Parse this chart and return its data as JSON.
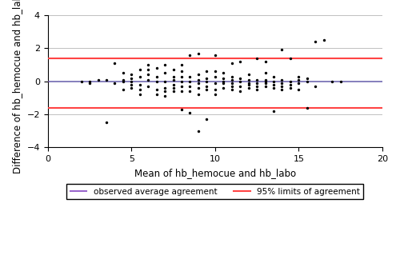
{
  "xlim": [
    0,
    20
  ],
  "ylim": [
    -4,
    4
  ],
  "xticks": [
    0,
    5,
    10,
    15,
    20
  ],
  "yticks": [
    -4,
    -2,
    0,
    2,
    4
  ],
  "xlabel": "Mean of hb_hemocue and hb_labo",
  "ylabel": "Difference of hb_hemocue and hb_labo",
  "mean_line_y": 0.0,
  "upper_loa": 1.4,
  "lower_loa": -1.6,
  "mean_line_color": "#9966CC",
  "loa_color": "#FF4444",
  "background_color": "#ffffff",
  "grid_color": "#c0c0c0",
  "scatter_color": "#000000",
  "scatter_size": 6,
  "legend_mean_label": "observed average agreement",
  "legend_loa_label": "95% limits of agreement",
  "scatter_x": [
    2.0,
    2.5,
    2.5,
    3.0,
    3.5,
    3.5,
    4.0,
    4.0,
    4.5,
    4.5,
    4.5,
    4.5,
    5.0,
    5.0,
    5.0,
    5.0,
    5.0,
    5.5,
    5.5,
    5.5,
    5.5,
    5.5,
    6.0,
    6.0,
    6.0,
    6.0,
    6.0,
    6.5,
    6.5,
    6.5,
    6.5,
    6.5,
    7.0,
    7.0,
    7.0,
    7.0,
    7.0,
    7.0,
    7.5,
    7.5,
    7.5,
    7.5,
    7.5,
    7.5,
    8.0,
    8.0,
    8.0,
    8.0,
    8.0,
    8.0,
    8.0,
    8.5,
    8.5,
    8.5,
    8.5,
    8.5,
    8.5,
    9.0,
    9.0,
    9.0,
    9.0,
    9.0,
    9.0,
    9.0,
    9.5,
    9.5,
    9.5,
    9.5,
    9.5,
    9.5,
    10.0,
    10.0,
    10.0,
    10.0,
    10.0,
    10.0,
    10.5,
    10.5,
    10.5,
    10.5,
    10.5,
    11.0,
    11.0,
    11.0,
    11.0,
    11.0,
    11.0,
    11.5,
    11.5,
    11.5,
    11.5,
    11.5,
    12.0,
    12.0,
    12.0,
    12.0,
    12.0,
    12.5,
    12.5,
    12.5,
    12.5,
    12.5,
    13.0,
    13.0,
    13.0,
    13.0,
    13.0,
    13.0,
    13.5,
    13.5,
    13.5,
    13.5,
    13.5,
    14.0,
    14.0,
    14.0,
    14.0,
    14.0,
    14.5,
    14.5,
    14.5,
    14.5,
    15.0,
    15.0,
    15.0,
    15.0,
    15.5,
    15.5,
    15.5,
    16.0,
    16.0,
    16.5,
    17.0,
    17.5
  ],
  "scatter_y": [
    0.0,
    -0.1,
    0.0,
    0.1,
    -2.5,
    0.1,
    -0.1,
    1.1,
    -0.5,
    0.0,
    0.1,
    0.5,
    -0.4,
    -0.2,
    0.0,
    0.2,
    0.4,
    -0.8,
    -0.5,
    -0.2,
    0.3,
    0.7,
    -0.3,
    0.1,
    0.4,
    0.7,
    1.0,
    -0.8,
    -0.5,
    0.0,
    0.3,
    0.8,
    -0.9,
    -0.6,
    -0.4,
    0.0,
    0.5,
    1.0,
    -0.6,
    -0.4,
    -0.2,
    0.1,
    0.3,
    0.7,
    -1.7,
    -0.6,
    -0.3,
    0.0,
    0.3,
    0.6,
    1.0,
    -1.9,
    -0.6,
    -0.3,
    0.0,
    0.3,
    1.6,
    -3.0,
    -0.8,
    -0.4,
    -0.1,
    0.1,
    0.4,
    1.7,
    -2.3,
    -0.5,
    -0.3,
    0.0,
    0.2,
    0.6,
    -0.8,
    -0.5,
    -0.1,
    0.3,
    0.6,
    1.6,
    -0.4,
    -0.1,
    0.0,
    0.2,
    0.5,
    -0.5,
    -0.3,
    -0.1,
    0.1,
    0.3,
    1.1,
    -0.6,
    -0.3,
    0.0,
    0.2,
    1.2,
    -0.4,
    -0.2,
    -0.1,
    0.1,
    0.4,
    -0.5,
    -0.3,
    -0.1,
    0.1,
    1.4,
    -0.3,
    -0.1,
    0.0,
    0.1,
    0.5,
    1.2,
    -1.8,
    -0.4,
    -0.2,
    0.0,
    0.3,
    -0.5,
    -0.3,
    -0.1,
    0.1,
    1.9,
    -0.4,
    -0.2,
    0.0,
    1.4,
    -0.5,
    -0.1,
    0.1,
    0.3,
    -1.6,
    0.0,
    0.2,
    2.4,
    -0.3,
    2.5,
    0.0,
    0.0
  ]
}
